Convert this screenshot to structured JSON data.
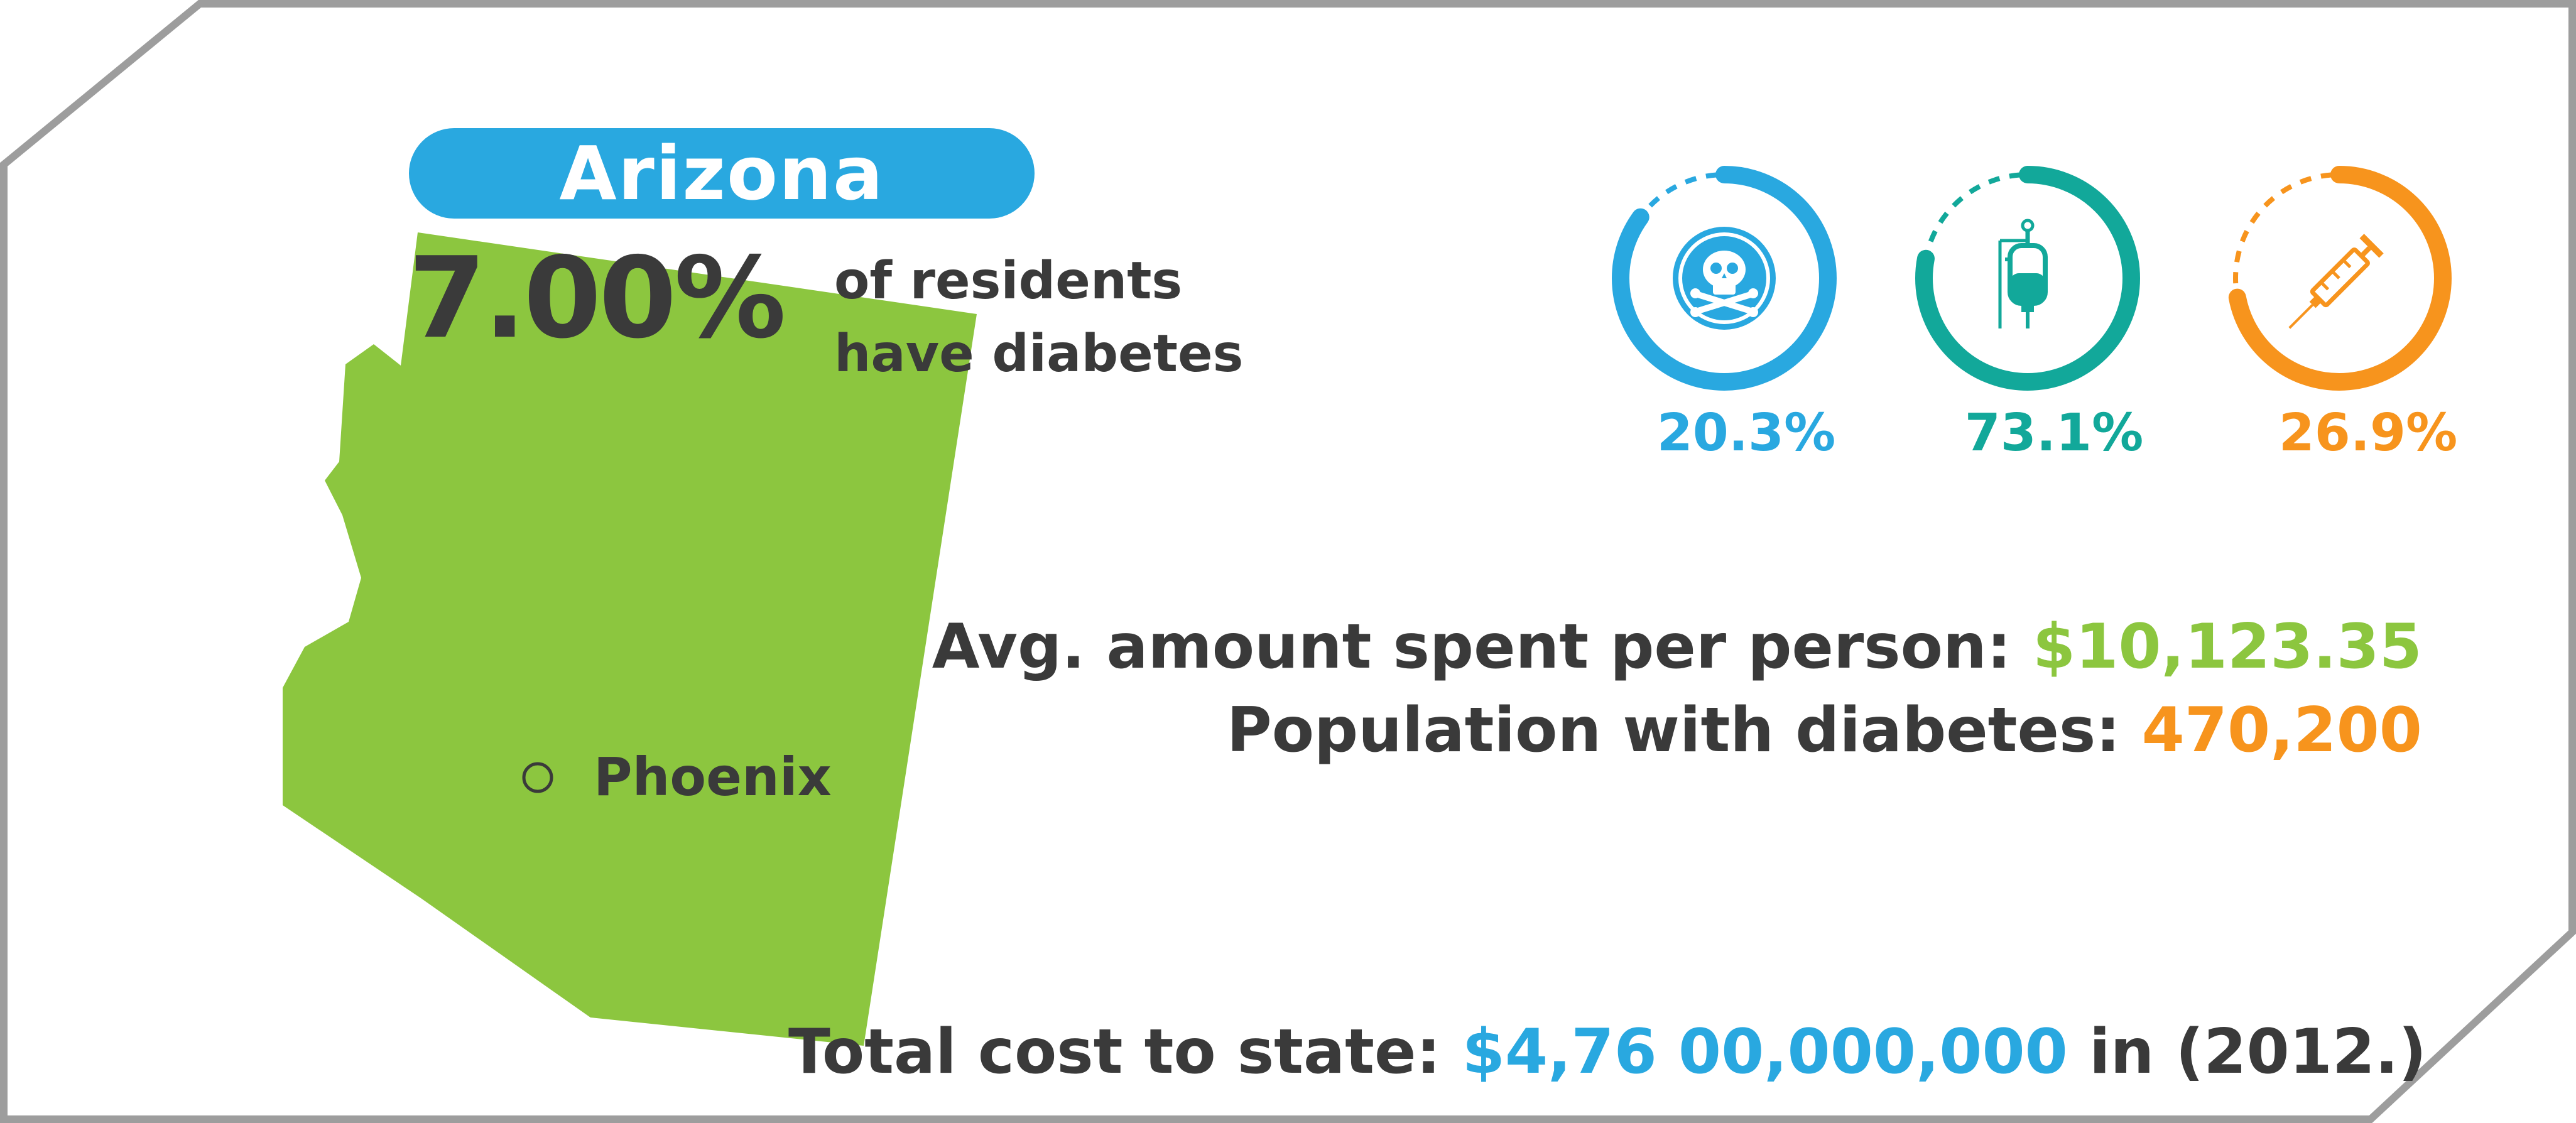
{
  "colors": {
    "text_dark": "#3a3a3a",
    "blue": "#29a8e0",
    "teal": "#12a89a",
    "orange": "#f7941d",
    "green": "#8cc63f",
    "frame_gray": "#9d9d9d"
  },
  "state": {
    "name": "Arizona",
    "diabetes_percent": "7.00%",
    "caption_line1": "of residents",
    "caption_line2": "have diabetes",
    "city": "Phoenix"
  },
  "rings": [
    {
      "value": "20.3%",
      "fraction": 0.203,
      "color": "#29a8e0",
      "icon": "skull-crossbones-icon"
    },
    {
      "value": "73.1%",
      "fraction": 0.731,
      "color": "#12a89a",
      "icon": "iv-bag-icon"
    },
    {
      "value": "26.9%",
      "fraction": 0.269,
      "color": "#f7941d",
      "icon": "syringe-icon"
    }
  ],
  "stats": {
    "avg_label": "Avg. amount spent per person: ",
    "avg_value": "$10,123.35",
    "population_label": "Population with diabetes: ",
    "population_value": "470,200"
  },
  "total": {
    "label": "Total cost to state: ",
    "value": "$4,76 00,000,000",
    "suffix": " in (2012.)"
  }
}
